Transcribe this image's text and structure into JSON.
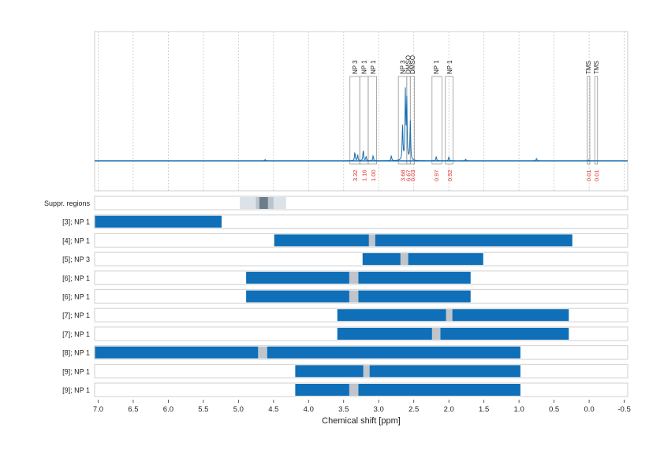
{
  "chart_data": {
    "type": "bar",
    "title": "",
    "xlabel": "Chemical shift [ppm]",
    "xlim": [
      7.05,
      -0.55
    ],
    "x_ticks": [
      "7.0",
      "6.5",
      "6.0",
      "5.5",
      "5.0",
      "4.5",
      "4.0",
      "3.5",
      "3.0",
      "2.5",
      "2.0",
      "1.5",
      "1.0",
      "0.5",
      "0.0",
      "-0.5"
    ],
    "x_tick_values": [
      7.0,
      6.5,
      6.0,
      5.5,
      5.0,
      4.5,
      4.0,
      3.5,
      3.0,
      2.5,
      2.0,
      1.5,
      1.0,
      0.5,
      0.0,
      -0.5
    ],
    "grid": true,
    "colors": {
      "spectrum": "#1a6faf",
      "bar": "#0f6fb8",
      "gap": "#bfc5ca",
      "integral_label": "#e03030",
      "suppr_outer": "#dbe2e8",
      "suppr_mid": "#b9c4cc",
      "suppr_inner": "#6b7d8a",
      "frame": "#cfcfcf"
    },
    "spectrum": {
      "peak_labels": [
        {
          "text": "NP 3",
          "ppm": 3.34
        },
        {
          "text": "NP 1",
          "ppm": 3.21
        },
        {
          "text": "NP 1",
          "ppm": 3.08
        },
        {
          "text": "NP 3",
          "ppm": 2.66
        },
        {
          "text": "DMSO",
          "ppm": 2.58
        },
        {
          "text": "DMSO",
          "ppm": 2.52
        },
        {
          "text": "NP 1",
          "ppm": 2.18
        },
        {
          "text": "NP 1",
          "ppm": 1.99
        },
        {
          "text": "TMS",
          "ppm": 0.01
        },
        {
          "text": "TMS",
          "ppm": -0.1
        }
      ],
      "integral_boxes": [
        {
          "from": 3.41,
          "to": 3.27
        },
        {
          "from": 3.27,
          "to": 3.15
        },
        {
          "from": 3.15,
          "to": 3.03
        },
        {
          "from": 2.72,
          "to": 2.6
        },
        {
          "from": 2.6,
          "to": 2.55
        },
        {
          "from": 2.55,
          "to": 2.49
        },
        {
          "from": 2.24,
          "to": 2.1
        },
        {
          "from": 2.05,
          "to": 1.94
        },
        {
          "from": 0.03,
          "to": -0.01
        },
        {
          "from": -0.08,
          "to": -0.12
        }
      ],
      "integral_values": [
        {
          "text": "3.32",
          "ppm": 3.34
        },
        {
          "text": "1.16",
          "ppm": 3.21
        },
        {
          "text": "1.00",
          "ppm": 3.08
        },
        {
          "text": "3.68",
          "ppm": 2.66
        },
        {
          "text": "6.67",
          "ppm": 2.58
        },
        {
          "text": "0.03",
          "ppm": 2.52
        },
        {
          "text": "0.97",
          "ppm": 2.18
        },
        {
          "text": "0.92",
          "ppm": 1.99
        },
        {
          "text": "0.01",
          "ppm": 0.01
        },
        {
          "text": "0.01",
          "ppm": -0.1
        }
      ],
      "peaks": [
        {
          "ppm": 3.34,
          "height": 0.1
        },
        {
          "ppm": 3.3,
          "height": 0.07
        },
        {
          "ppm": 3.22,
          "height": 0.13
        },
        {
          "ppm": 3.18,
          "height": 0.05
        },
        {
          "ppm": 3.08,
          "height": 0.06
        },
        {
          "ppm": 2.82,
          "height": 0.06
        },
        {
          "ppm": 2.66,
          "height": 0.42
        },
        {
          "ppm": 2.62,
          "height": 0.78
        },
        {
          "ppm": 2.6,
          "height": 0.72
        },
        {
          "ppm": 2.55,
          "height": 0.45
        },
        {
          "ppm": 2.18,
          "height": 0.05
        },
        {
          "ppm": 2.0,
          "height": 0.05
        },
        {
          "ppm": 1.76,
          "height": 0.02
        },
        {
          "ppm": 0.75,
          "height": 0.03
        },
        {
          "ppm": 4.62,
          "height": 0.015
        },
        {
          "ppm": 0.01,
          "height": 0.01
        }
      ]
    },
    "rows": [
      {
        "label": "Suppr. regions",
        "type": "suppr",
        "outer": [
          4.98,
          4.32
        ],
        "mid": [
          4.75,
          4.5
        ],
        "inner": [
          4.7,
          4.58
        ]
      },
      {
        "label": "[3]; NP 1",
        "segments": [
          [
            7.05,
            5.24
          ]
        ],
        "gaps": []
      },
      {
        "label": "[4]; NP 1",
        "segments": [
          [
            4.49,
            3.14
          ],
          [
            3.05,
            0.24
          ]
        ],
        "gaps": [
          [
            3.14,
            3.05
          ]
        ]
      },
      {
        "label": "[5]; NP 3",
        "segments": [
          [
            3.23,
            2.69
          ],
          [
            2.58,
            1.51
          ]
        ],
        "gaps": [
          [
            2.69,
            2.58
          ]
        ]
      },
      {
        "label": "[6]; NP 1",
        "segments": [
          [
            4.89,
            3.42
          ],
          [
            3.29,
            1.69
          ]
        ],
        "gaps": [
          [
            3.42,
            3.29
          ]
        ]
      },
      {
        "label": "[6]; NP 1",
        "segments": [
          [
            4.89,
            3.42
          ],
          [
            3.29,
            1.69
          ]
        ],
        "gaps": [
          [
            3.42,
            3.29
          ]
        ]
      },
      {
        "label": "[7]; NP 1",
        "segments": [
          [
            3.59,
            2.04
          ],
          [
            1.95,
            0.29
          ]
        ],
        "gaps": [
          [
            2.04,
            1.95
          ]
        ]
      },
      {
        "label": "[7]; NP 1",
        "segments": [
          [
            3.59,
            2.24
          ],
          [
            2.12,
            0.29
          ]
        ],
        "gaps": [
          [
            2.24,
            2.12
          ]
        ]
      },
      {
        "label": "[8]; NP 1",
        "segments": [
          [
            7.05,
            4.72
          ],
          [
            4.59,
            0.98
          ]
        ],
        "gaps": [
          [
            4.72,
            4.59
          ]
        ]
      },
      {
        "label": "[9]; NP 1",
        "segments": [
          [
            4.19,
            3.22
          ],
          [
            3.13,
            0.98
          ]
        ],
        "gaps": [
          [
            3.22,
            3.13
          ]
        ]
      },
      {
        "label": "[9]; NP 1",
        "segments": [
          [
            4.19,
            3.42
          ],
          [
            3.29,
            0.98
          ]
        ],
        "gaps": [
          [
            3.42,
            3.29
          ]
        ]
      }
    ]
  }
}
